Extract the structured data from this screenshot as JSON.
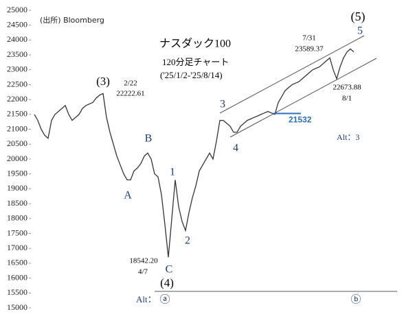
{
  "chart_data": {
    "type": "line",
    "color": "#333333",
    "values": [
      21500,
      21300,
      21000,
      20800,
      20700,
      21300,
      21500,
      21600,
      21700,
      21800,
      21500,
      21300,
      21400,
      21500,
      21700,
      21800,
      21850,
      21900,
      22050,
      22150,
      22200,
      21400,
      20900,
      20500,
      20100,
      19800,
      19500,
      19300,
      19300,
      19600,
      19700,
      19850,
      20100,
      20200,
      20000,
      19500,
      19400,
      18800,
      17800,
      16700,
      18000,
      19300,
      18400,
      17900,
      17600,
      18200,
      18700,
      19100,
      19600,
      19800,
      20000,
      20200,
      20000,
      20600,
      21300,
      21300,
      21200,
      21100,
      20900,
      20900,
      21100,
      21200,
      21300,
      21350,
      21400,
      21450,
      21500,
      21550,
      21600,
      21550,
      21500,
      21900,
      22100,
      22300,
      22400,
      22500,
      22550,
      22600,
      22700,
      22800,
      22900,
      23000,
      23050,
      23100,
      23200,
      23300,
      23400,
      23000,
      22700,
      23100,
      23400,
      23600,
      23700,
      23600
    ],
    "ylim": [
      15000,
      25000
    ],
    "yticks": [
      15000,
      15500,
      16000,
      16500,
      17000,
      17500,
      18000,
      18500,
      19000,
      19500,
      20000,
      20500,
      21000,
      21500,
      22000,
      22500,
      23000,
      23500,
      24000,
      24500,
      25000
    ],
    "levels": [
      {
        "value": 21532,
        "label": "21532"
      }
    ],
    "annotations": [
      "(出所) Bloomberg",
      "ナスダック100",
      "120分足チャート",
      "('25/1/2-'25/8/14)",
      "(3)",
      "2/22",
      "22222.61",
      "B",
      "A",
      "1",
      "2",
      "C",
      "18542.20",
      "4/7",
      "(4)",
      "3",
      "4",
      "5",
      "(5)",
      "7/31",
      "23589.37",
      "22673.88",
      "8/1",
      "Alt：3",
      "Alt：",
      "ⓐ",
      "ⓑ"
    ]
  }
}
